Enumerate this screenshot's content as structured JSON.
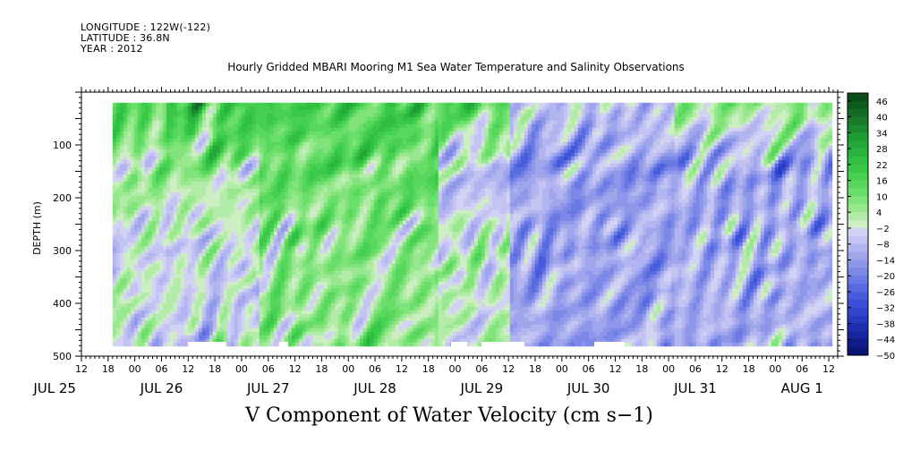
{
  "header": {
    "longitude": "LONGITUDE : 122W(-122)",
    "latitude": "LATITUDE : 36.8N",
    "year": "YEAR : 2012"
  },
  "chart_data": {
    "type": "heatmap",
    "title": "Hourly Gridded MBARI Mooring M1 Sea Water Temperature and Salinity Observations",
    "caption": "V Component of Water Velocity (cm s−1)",
    "ylabel": "DEPTH (m)",
    "ylim": [
      500,
      0
    ],
    "yticks": [
      "100",
      "200",
      "300",
      "400",
      "500"
    ],
    "depth_range": [
      20,
      480
    ],
    "xlim": [
      "2012-07-25T12:00",
      "2012-08-01T14:00"
    ],
    "data_range": [
      "2012-07-25T19:00",
      "2012-08-01T12:00"
    ],
    "hour_ticks": [
      "12",
      "18",
      "00",
      "06",
      "12",
      "18",
      "00",
      "06",
      "12",
      "18",
      "00",
      "06",
      "12",
      "18",
      "00",
      "06",
      "12",
      "18",
      "00",
      "06",
      "12",
      "18",
      "00",
      "06",
      "12",
      "18",
      "00",
      "06",
      "12"
    ],
    "date_labels": [
      "JUL 25",
      "JUL 26",
      "JUL 27",
      "JUL 28",
      "JUL 29",
      "JUL 30",
      "JUL 31",
      "AUG  1"
    ],
    "colorbar": {
      "labels": [
        "46",
        "40",
        "34",
        "28",
        "22",
        "16",
        "10",
        "4",
        "−2",
        "−8",
        "−14",
        "−20",
        "−26",
        "−32",
        "−38",
        "−44",
        "−50"
      ],
      "levels": [
        49,
        46,
        43,
        40,
        37,
        34,
        31,
        28,
        25,
        22,
        19,
        16,
        13,
        10,
        7,
        4,
        1,
        -2,
        -5,
        -8,
        -11,
        -14,
        -17,
        -20,
        -23,
        -26,
        -29,
        -32,
        -35,
        -38,
        -41,
        -44,
        -47,
        -50
      ],
      "colors": [
        "#0b4c1a",
        "#0e5a1e",
        "#126a23",
        "#167a28",
        "#1a8a2d",
        "#1e9a32",
        "#23a837",
        "#28b43c",
        "#2fbf42",
        "#3ac849",
        "#47d052",
        "#57d85c",
        "#6ade6a",
        "#80e37b",
        "#98e88f",
        "#b3eca8",
        "#cdeec2",
        "#d2d2f4",
        "#c3c4f2",
        "#b2b5ef",
        "#a0a6ec",
        "#8e97ea",
        "#7c88e7",
        "#6a79e4",
        "#586ae0",
        "#465cdc",
        "#3a4fd6",
        "#3044cc",
        "#263ac0",
        "#1d2fb0",
        "#16259e",
        "#101c8a",
        "#0b1474"
      ],
      "orientation": "vertical, right"
    },
    "series_approx": [
      {
        "period": "JUL 25 18 – JUL 26 00",
        "v_near_surface": 14,
        "v_mid": 4,
        "v_deep": -6
      },
      {
        "period": "JUL 26 00 – JUL 26 18",
        "v_near_surface": 20,
        "v_mid": 6,
        "v_deep": -10
      },
      {
        "period": "JUL 27 – JUL 28 12",
        "v_near_surface": 18,
        "v_mid": 12,
        "v_deep": 2
      },
      {
        "period": "JUL 28 18 – JUL 29 00",
        "v_near_surface": 16,
        "v_mid": -8,
        "v_deep": 6
      },
      {
        "period": "JUL 29 – JUL 31",
        "v_near_surface": -6,
        "v_mid": -14,
        "v_deep": -12
      },
      {
        "period": "JUL 31 – AUG 1 12",
        "v_near_surface": 6,
        "v_mid": -12,
        "v_deep": -10
      }
    ]
  }
}
